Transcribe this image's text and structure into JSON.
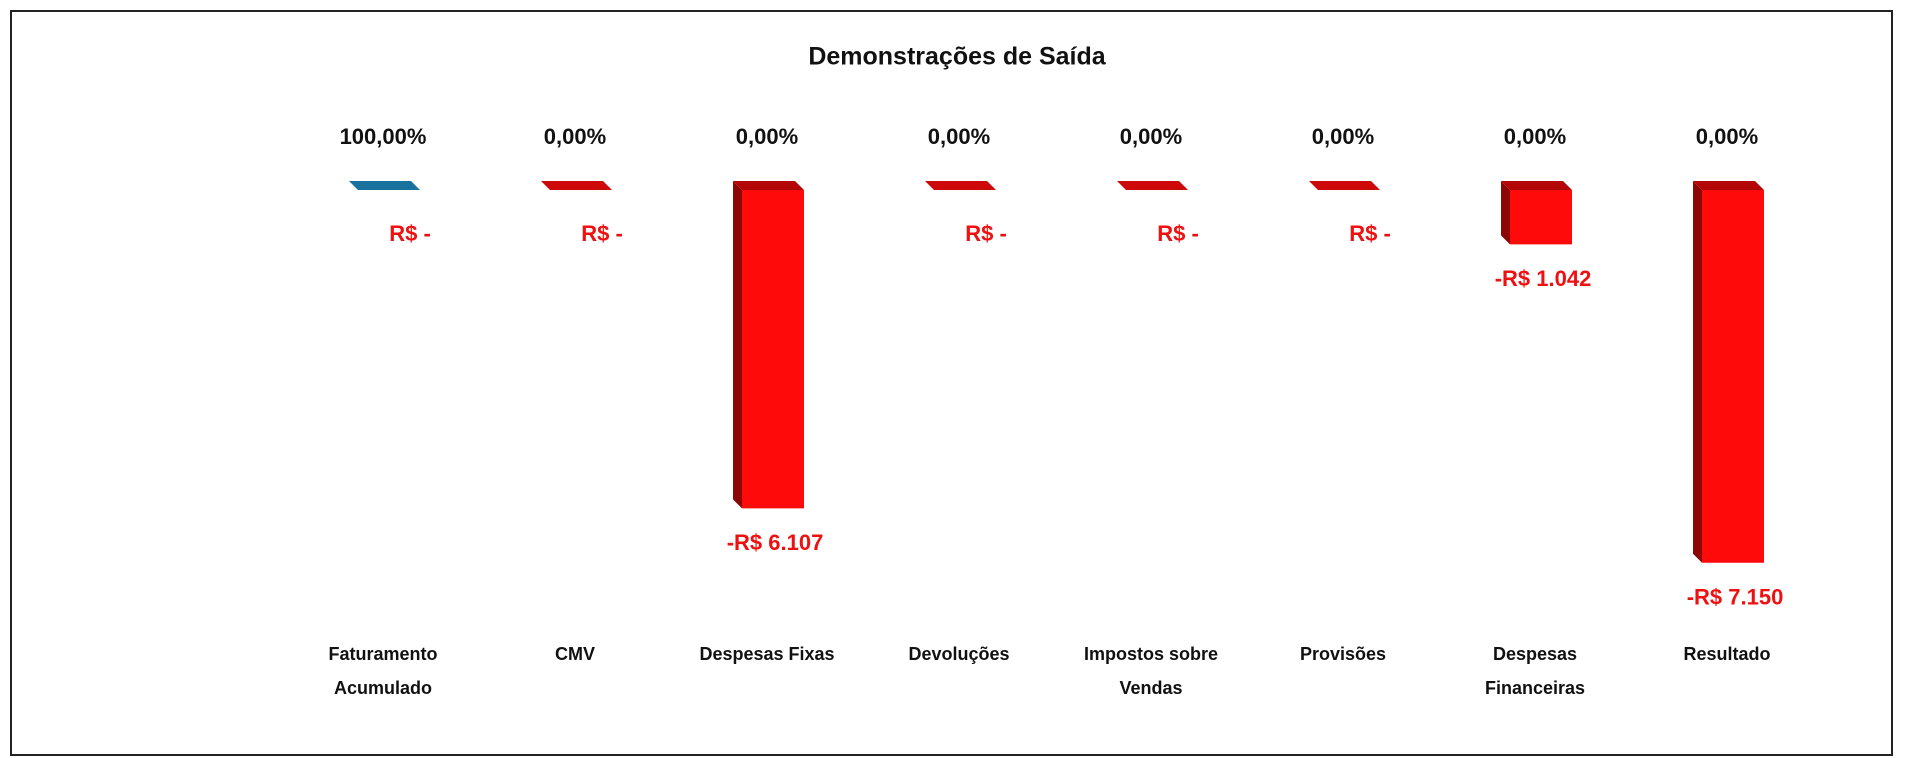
{
  "chart_data": {
    "type": "bar3d",
    "title": "Demonstrações de Saída",
    "categories": [
      "Faturamento Acumulado",
      "CMV",
      "Despesas Fixas",
      "Devoluções",
      "Impostos sobre Vendas",
      "Provisões",
      "Despesas Financeiras",
      "Resultado"
    ],
    "values": [
      0,
      0,
      -6107,
      0,
      0,
      0,
      -1042,
      -7150
    ],
    "value_labels": [
      "R$ -",
      "R$ -",
      "-R$ 6.107",
      "R$ -",
      "R$ -",
      "R$ -",
      "-R$ 1.042",
      "-R$ 7.150"
    ],
    "percent_labels": [
      "100,00%",
      "0,00%",
      "0,00%",
      "0,00%",
      "0,00%",
      "0,00%",
      "0,00%",
      "0,00%"
    ],
    "colors": [
      "#1f8fc4",
      "#ff0a0a",
      "#ff0a0a",
      "#ff0a0a",
      "#ff0a0a",
      "#ff0a0a",
      "#ff0a0a",
      "#ff0a0a"
    ],
    "label_color": "#ee1111",
    "ylim": [
      -8000,
      0
    ]
  }
}
